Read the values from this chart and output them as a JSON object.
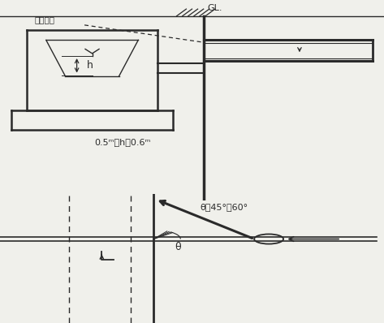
{
  "bg_color": "#f0f0eb",
  "line_color": "#2a2a2a",
  "gl_label": "GL.",
  "dousui_label": "動水勾配",
  "h_label": "h",
  "formula_label": "0.5ᵐ＜h＜0.6ᵐ",
  "theta_eq_label": "θ＝45°～60°",
  "theta_label": "θ"
}
